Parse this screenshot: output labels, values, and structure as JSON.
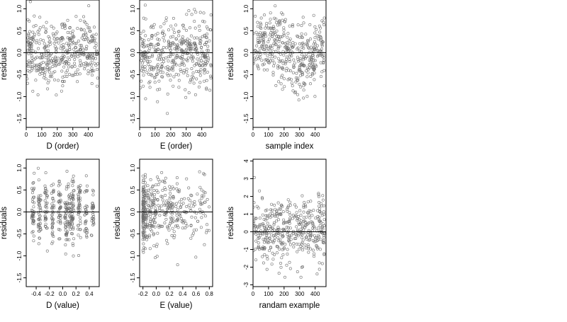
{
  "colors": {
    "point": "#6e6e6e",
    "axis": "#000000",
    "frame": "#000000"
  },
  "chart_data": [
    {
      "type": "scatter",
      "xlabel": "D (order)",
      "ylabel": "residuals",
      "xlim": [
        0,
        470
      ],
      "ylim": [
        -1.7,
        1.2
      ],
      "xticks": [
        0,
        100,
        200,
        300,
        400
      ],
      "xtick_labels": [
        "0",
        "100",
        "200",
        "300",
        "400"
      ],
      "yticks": [
        -1.5,
        -1.0,
        -0.5,
        0.0,
        0.5,
        1.0
      ],
      "ytick_labels": [
        "-1.5",
        "-1.0",
        "-0.5",
        "0.0",
        "0.5",
        "1.0"
      ],
      "reference_line_y": 0,
      "grid": false,
      "legend": "none",
      "points": {
        "n": 420,
        "x_range": [
          0,
          460
        ],
        "spread": 0.38,
        "seed": 11,
        "pattern": "uniform"
      }
    },
    {
      "type": "scatter",
      "xlabel": "E (order)",
      "ylabel": "residuals",
      "xlim": [
        0,
        470
      ],
      "ylim": [
        -1.7,
        1.2
      ],
      "xticks": [
        0,
        100,
        200,
        300,
        400
      ],
      "xtick_labels": [
        "0",
        "100",
        "200",
        "300",
        "400"
      ],
      "yticks": [
        -1.5,
        -1.0,
        -0.5,
        0.0,
        0.5,
        1.0
      ],
      "ytick_labels": [
        "-1.5",
        "-1.0",
        "-0.5",
        "0.0",
        "0.5",
        "1.0"
      ],
      "reference_line_y": 0,
      "grid": false,
      "legend": "none",
      "points": {
        "n": 420,
        "x_range": [
          0,
          460
        ],
        "spread": 0.38,
        "seed": 23,
        "pattern": "uniform"
      }
    },
    {
      "type": "scatter",
      "xlabel": "sample index",
      "ylabel": "residuals",
      "xlim": [
        0,
        470
      ],
      "ylim": [
        -1.7,
        1.2
      ],
      "xticks": [
        0,
        100,
        200,
        300,
        400
      ],
      "xtick_labels": [
        "0",
        "100",
        "200",
        "300",
        "400"
      ],
      "yticks": [
        -1.5,
        -1.0,
        -0.5,
        0.0,
        0.5,
        1.0
      ],
      "ytick_labels": [
        "-1.5",
        "-1.0",
        "-0.5",
        "0.0",
        "0.5",
        "1.0"
      ],
      "reference_line_y": 0,
      "grid": false,
      "legend": "none",
      "points": {
        "n": 420,
        "x_range": [
          0,
          460
        ],
        "spread": 0.38,
        "seed": 37,
        "pattern": "wave"
      }
    },
    {
      "type": "scatter",
      "xlabel": "D (value)",
      "ylabel": "residuals",
      "xlim": [
        -0.55,
        0.55
      ],
      "ylim": [
        -1.7,
        1.2
      ],
      "xticks": [
        -0.4,
        -0.2,
        0.0,
        0.2,
        0.4
      ],
      "xtick_labels": [
        "-0.4",
        "-0.2",
        "0.0",
        "0.2",
        "0.4"
      ],
      "yticks": [
        -1.5,
        -1.0,
        -0.5,
        0.0,
        0.5,
        1.0
      ],
      "ytick_labels": [
        "-1.5",
        "-1.0",
        "-0.5",
        "0.0",
        "0.5",
        "1.0"
      ],
      "reference_line_y": 0,
      "grid": false,
      "legend": "none",
      "points": {
        "n": 420,
        "x_range": [
          -0.5,
          0.5
        ],
        "spread": 0.38,
        "seed": 53,
        "pattern": "bands",
        "bands": [
          -0.45,
          -0.35,
          -0.25,
          -0.15,
          -0.05,
          0.05,
          0.1,
          0.15,
          0.25,
          0.35,
          0.45
        ]
      }
    },
    {
      "type": "scatter",
      "xlabel": "E (value)",
      "ylabel": "residuals",
      "xlim": [
        -0.25,
        0.85
      ],
      "ylim": [
        -1.7,
        1.2
      ],
      "xticks": [
        -0.2,
        0.0,
        0.2,
        0.4,
        0.6,
        0.8
      ],
      "xtick_labels": [
        "-0.2",
        "0.0",
        "0.2",
        "0.4",
        "0.6",
        "0.8"
      ],
      "yticks": [
        -1.5,
        -1.0,
        -0.5,
        0.0,
        0.5,
        1.0
      ],
      "ytick_labels": [
        "-1.5",
        "-1.0",
        "-0.5",
        "0.0",
        "0.5",
        "1.0"
      ],
      "reference_line_y": 0,
      "grid": false,
      "legend": "none",
      "points": {
        "n": 420,
        "x_range": [
          -0.2,
          0.8
        ],
        "spread": 0.38,
        "seed": 71,
        "pattern": "skew"
      }
    },
    {
      "type": "scatter",
      "xlabel": "randam example",
      "ylabel": "residuals",
      "xlim": [
        0,
        470
      ],
      "ylim": [
        -3.1,
        4.1
      ],
      "xticks": [
        0,
        100,
        200,
        300,
        400
      ],
      "xtick_labels": [
        "0",
        "100",
        "200",
        "300",
        "400"
      ],
      "yticks": [
        -3,
        -2,
        -1,
        0,
        1,
        2,
        3,
        4
      ],
      "ytick_labels": [
        "-3",
        "-2",
        "-1",
        "0",
        "1",
        "2",
        "3",
        "4"
      ],
      "reference_line_y": 0,
      "grid": false,
      "legend": "none",
      "points": {
        "n": 420,
        "x_range": [
          0,
          460
        ],
        "spread": 1.0,
        "seed": 97,
        "pattern": "uniform"
      }
    }
  ]
}
